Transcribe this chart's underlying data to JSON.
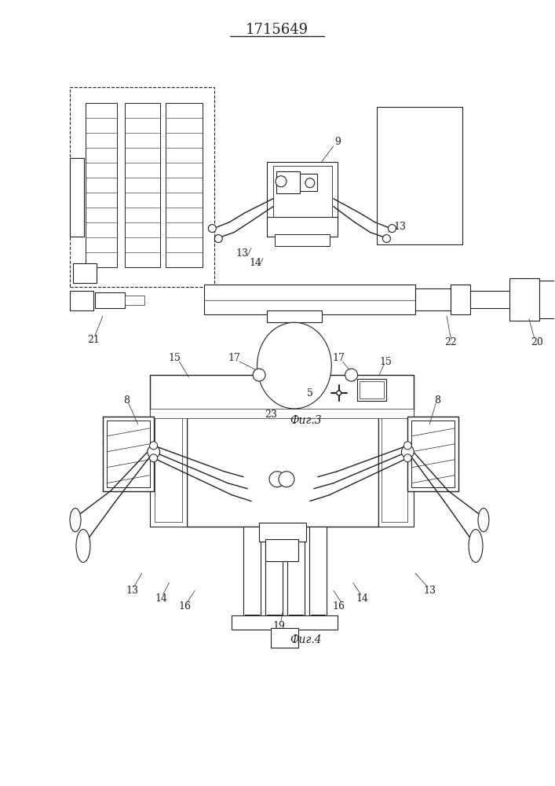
{
  "title": "1715649",
  "background_color": "#ffffff",
  "fig3_label": "Фиг.3",
  "fig4_label": "Фиг.4"
}
